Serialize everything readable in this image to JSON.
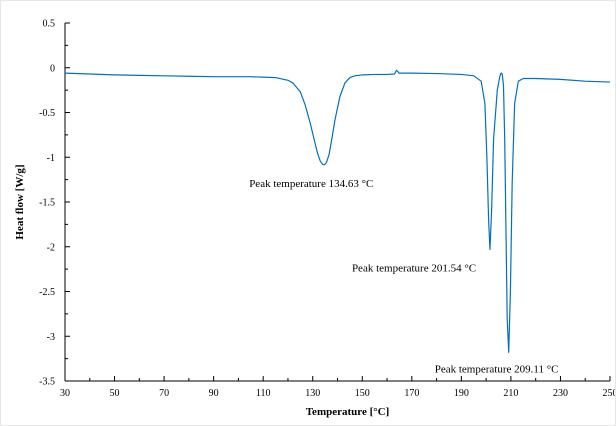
{
  "chart_data": {
    "type": "line",
    "xlabel": "Temperature [°C]",
    "ylabel": "Heat flow [W/g]",
    "xlim": [
      30,
      250
    ],
    "ylim": [
      -3.5,
      0.5
    ],
    "xticks": [
      30,
      50,
      70,
      90,
      110,
      130,
      150,
      170,
      190,
      210,
      230,
      250
    ],
    "xtick_labels": [
      "30",
      "50",
      "70",
      "90",
      "110",
      "130",
      "150",
      "170",
      "190",
      "210",
      "230",
      "250"
    ],
    "yticks": [
      0.5,
      0,
      -0.5,
      -1,
      -1.5,
      -2,
      -2.5,
      -3,
      -3.5
    ],
    "ytick_labels": [
      "0.5",
      "0",
      "-0.5",
      "-1",
      "-1.5",
      "-2",
      "-2.5",
      "-3",
      "-3.5"
    ],
    "grid": false,
    "line_color": "#0070c0",
    "series": [
      {
        "x": [
          30,
          40,
          50,
          60,
          70,
          80,
          90,
          100,
          105,
          110,
          115,
          120,
          122,
          125,
          127,
          129,
          131,
          132,
          133,
          134,
          134.63,
          135.5,
          136.5,
          137.5,
          139,
          141,
          143,
          145,
          147,
          150,
          155,
          160,
          163,
          163.8,
          164.3,
          164.8,
          166,
          170,
          180,
          190,
          195,
          198,
          199.5,
          200.3,
          201,
          201.54,
          202.2,
          203,
          204.5,
          205.5,
          206,
          206.5,
          207,
          207.5,
          208,
          208.5,
          209.11,
          209.8,
          210.5,
          211.5,
          213,
          215,
          220,
          230,
          240,
          250
        ],
        "y": [
          -0.06,
          -0.07,
          -0.08,
          -0.085,
          -0.09,
          -0.095,
          -0.1,
          -0.1,
          -0.1,
          -0.105,
          -0.11,
          -0.14,
          -0.17,
          -0.27,
          -0.42,
          -0.62,
          -0.85,
          -0.96,
          -1.04,
          -1.08,
          -1.085,
          -1.06,
          -0.98,
          -0.83,
          -0.58,
          -0.32,
          -0.17,
          -0.11,
          -0.09,
          -0.08,
          -0.075,
          -0.075,
          -0.07,
          -0.03,
          -0.04,
          -0.06,
          -0.06,
          -0.06,
          -0.065,
          -0.075,
          -0.09,
          -0.15,
          -0.4,
          -1.0,
          -1.7,
          -2.03,
          -1.6,
          -0.8,
          -0.25,
          -0.1,
          -0.06,
          -0.07,
          -0.2,
          -0.8,
          -1.8,
          -2.8,
          -3.18,
          -2.5,
          -1.3,
          -0.4,
          -0.15,
          -0.12,
          -0.12,
          -0.13,
          -0.15,
          -0.16
        ]
      }
    ],
    "annotations": [
      {
        "text": "Peak temperature 134.63 °C",
        "x": 134.63,
        "y": -1.085
      },
      {
        "text": "Peak temperature 201.54 °C",
        "x": 201.54,
        "y": -2.03
      },
      {
        "text": "Peak temperature 209.11 °C",
        "x": 209.11,
        "y": -3.18
      }
    ]
  }
}
